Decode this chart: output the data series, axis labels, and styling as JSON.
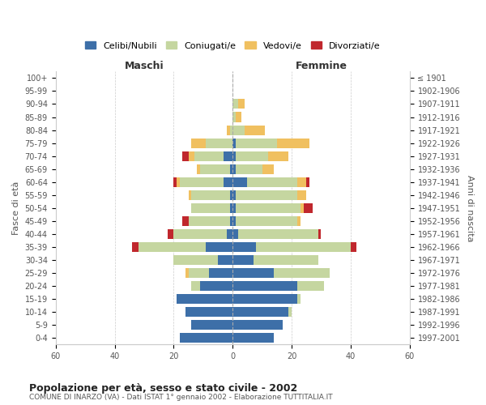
{
  "age_groups": [
    "100+",
    "95-99",
    "90-94",
    "85-89",
    "80-84",
    "75-79",
    "70-74",
    "65-69",
    "60-64",
    "55-59",
    "50-54",
    "45-49",
    "40-44",
    "35-39",
    "30-34",
    "25-29",
    "20-24",
    "15-19",
    "10-14",
    "5-9",
    "0-4"
  ],
  "birth_years": [
    "≤ 1901",
    "1902-1906",
    "1907-1911",
    "1912-1916",
    "1917-1921",
    "1922-1926",
    "1927-1931",
    "1932-1936",
    "1937-1941",
    "1942-1946",
    "1947-1951",
    "1952-1956",
    "1957-1961",
    "1962-1966",
    "1967-1971",
    "1972-1976",
    "1977-1981",
    "1982-1986",
    "1987-1991",
    "1992-1996",
    "1997-2001"
  ],
  "males": {
    "celibe": [
      0,
      0,
      0,
      0,
      0,
      0,
      3,
      1,
      3,
      1,
      1,
      1,
      2,
      9,
      5,
      8,
      11,
      19,
      16,
      14,
      18
    ],
    "coniugato": [
      0,
      0,
      0,
      0,
      1,
      9,
      10,
      10,
      15,
      13,
      13,
      14,
      18,
      23,
      15,
      7,
      3,
      0,
      0,
      0,
      0
    ],
    "vedovo": [
      0,
      0,
      0,
      0,
      1,
      5,
      2,
      1,
      1,
      1,
      0,
      0,
      0,
      0,
      0,
      1,
      0,
      0,
      0,
      0,
      0
    ],
    "divorziato": [
      0,
      0,
      0,
      0,
      0,
      0,
      2,
      0,
      1,
      0,
      0,
      2,
      2,
      2,
      0,
      0,
      0,
      0,
      0,
      0,
      0
    ]
  },
  "females": {
    "nubile": [
      0,
      0,
      0,
      0,
      0,
      1,
      1,
      1,
      5,
      1,
      1,
      1,
      2,
      8,
      7,
      14,
      22,
      22,
      19,
      17,
      14
    ],
    "coniugata": [
      0,
      0,
      2,
      1,
      4,
      14,
      11,
      9,
      17,
      21,
      22,
      21,
      27,
      32,
      22,
      19,
      9,
      1,
      1,
      0,
      0
    ],
    "vedova": [
      0,
      0,
      2,
      2,
      7,
      11,
      7,
      4,
      3,
      3,
      1,
      1,
      0,
      0,
      0,
      0,
      0,
      0,
      0,
      0,
      0
    ],
    "divorziata": [
      0,
      0,
      0,
      0,
      0,
      0,
      0,
      0,
      1,
      0,
      3,
      0,
      1,
      2,
      0,
      0,
      0,
      0,
      0,
      0,
      0
    ]
  },
  "colors": {
    "celibe": "#3d6fa8",
    "coniugato": "#c5d6a0",
    "vedovo": "#f0c060",
    "divorziato": "#c0272d"
  },
  "xlim": 60,
  "title1": "Popolazione per età, sesso e stato civile - 2002",
  "title2": "COMUNE DI INARZO (VA) - Dati ISTAT 1° gennaio 2002 - Elaborazione TUTTITALIA.IT",
  "legend_labels": [
    "Celibi/Nubili",
    "Coniugati/e",
    "Vedovi/e",
    "Divorziati/e"
  ],
  "ylabel_left": "Fasce di età",
  "ylabel_right": "Anni di nascita",
  "xlabel_left": "Maschi",
  "xlabel_right": "Femmine",
  "bg_color": "#ffffff",
  "grid_color": "#cccccc"
}
